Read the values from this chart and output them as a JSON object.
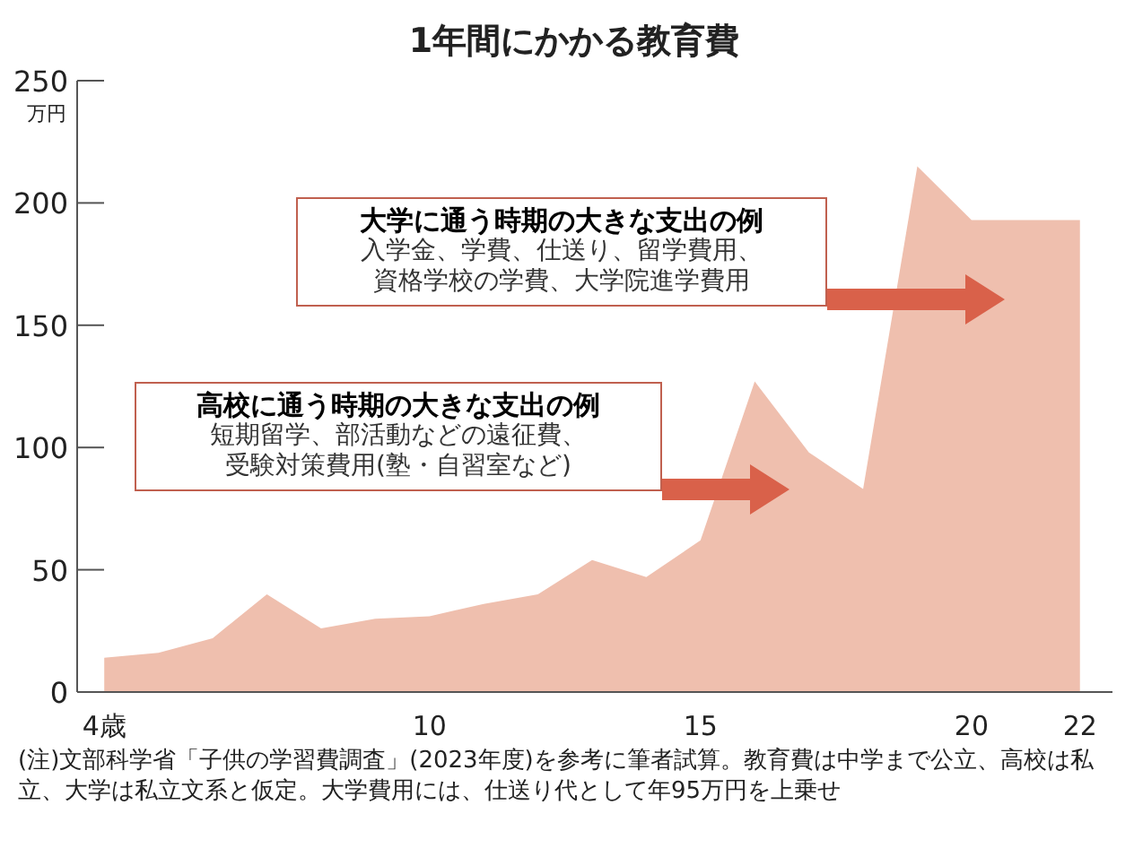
{
  "chart_data": {
    "type": "area",
    "title": "1年間にかかる教育費",
    "ylabel": "万円",
    "x": [
      4,
      5,
      6,
      7,
      8,
      9,
      10,
      11,
      12,
      13,
      14,
      15,
      16,
      17,
      18,
      19,
      20,
      21,
      22
    ],
    "series": [
      {
        "color": "#efbfae",
        "values": [
          14,
          16,
          22,
          40,
          26,
          30,
          31,
          36,
          40,
          54,
          47,
          62,
          127,
          98,
          83,
          215,
          193,
          193,
          193
        ]
      }
    ],
    "xlim": [
      3.5,
      22.6
    ],
    "ylim": [
      0,
      250
    ],
    "xticks": [
      {
        "value": 4,
        "label": "4歳"
      },
      10,
      15,
      20,
      22
    ],
    "yticks": [
      0,
      50,
      100,
      150,
      200,
      250
    ],
    "annotations": [
      "大学に通う時期の大きな支出の例",
      "入学金、学費、仕送り、留学費用、",
      "資格学校の学費、大学院進学費用",
      "高校に通う時期の大きな支出の例",
      "短期留学、部活動などの遠征費、",
      "受験対策費用(塾・自習室など)",
      "(注)文部科学省「子供の学習費調査」(2023年度)を参考に筆者試算。教育費は中学まで公立、高校は私立、大学は私立文系と仮定。大学費用には、仕送り代として年95万円を上乗せ"
    ]
  }
}
